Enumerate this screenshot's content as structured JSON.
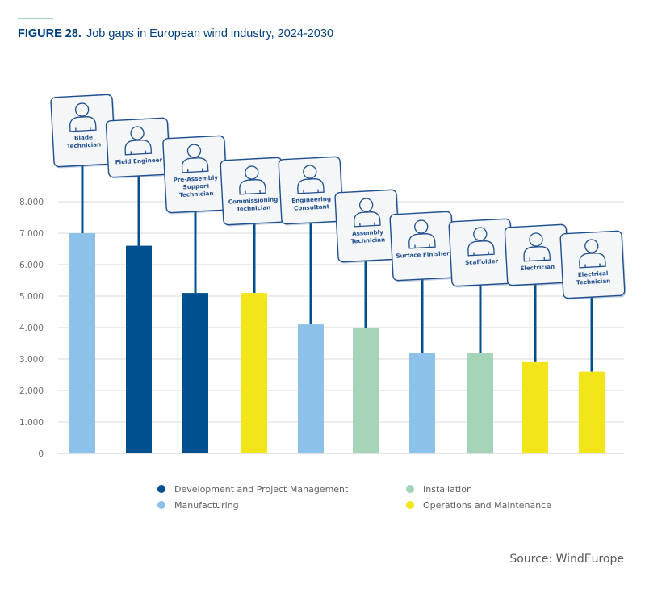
{
  "header": {
    "figure_label": "FIGURE 28.",
    "title": "Job gaps in European wind industry, 2024-2030",
    "accent_color": "#a6d4b8"
  },
  "source": "Source: WindEurope",
  "chart_data": {
    "type": "bar",
    "title": "Job gaps in European wind industry, 2024-2030",
    "xlabel": "",
    "ylabel": "",
    "ylim": [
      0,
      8000
    ],
    "yticks": [
      0,
      1000,
      2000,
      3000,
      4000,
      5000,
      6000,
      7000,
      8000
    ],
    "ytick_labels": [
      "0",
      "1.000",
      "2.000",
      "3.000",
      "4.000",
      "5.000",
      "6.000",
      "7.000",
      "8.000"
    ],
    "grid": true,
    "legend_position": "bottom",
    "categories": [
      "Blade Technician",
      "Field Engineer",
      "Pre-Assembly Support Technician",
      "Commissioning Technician",
      "Engineering Consultant",
      "Assembly Technician",
      "Surface Finisher",
      "Scaffolder",
      "Electrician",
      "Electrical Technician"
    ],
    "category_label_lines": [
      [
        "Blade",
        "Technician"
      ],
      [
        "Field Engineer"
      ],
      [
        "Pre-Assembly",
        "Support",
        "Technician"
      ],
      [
        "Commissioning",
        "Technician"
      ],
      [
        "Engineering",
        "Consultant"
      ],
      [
        "Assembly",
        "Technician"
      ],
      [
        "Surface Finisher"
      ],
      [
        "Scaffolder"
      ],
      [
        "Electrician"
      ],
      [
        "Electrical",
        "Technician"
      ]
    ],
    "values": [
      7000,
      6600,
      5100,
      5100,
      4100,
      4000,
      3200,
      3200,
      2900,
      2600
    ],
    "bar_groups": [
      "Manufacturing",
      "Development and Project Management",
      "Development and Project Management",
      "Operations and Maintenance",
      "Manufacturing",
      "Installation",
      "Manufacturing",
      "Installation",
      "Operations and Maintenance",
      "Operations and Maintenance"
    ],
    "legend": [
      {
        "name": "Development and Project Management",
        "color": "#00508f"
      },
      {
        "name": "Manufacturing",
        "color": "#8cc2ea"
      },
      {
        "name": "Installation",
        "color": "#a6d4b8"
      },
      {
        "name": "Operations and Maintenance",
        "color": "#f2e51a"
      }
    ],
    "sign_icon": "person-icon"
  }
}
